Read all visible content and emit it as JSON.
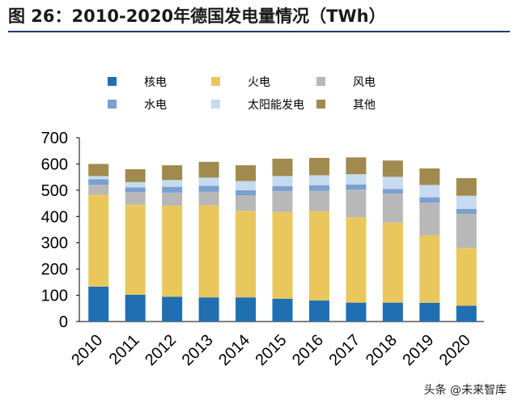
{
  "header": {
    "title": "图 26：2010-2020年德国发电量情况（TWh）"
  },
  "watermark": "头条 @未来智库",
  "chart_data": {
    "type": "bar",
    "stacked": true,
    "title": "图 26：2010-2020年德国发电量情况（TWh）",
    "categories": [
      "2010",
      "2011",
      "2012",
      "2013",
      "2014",
      "2015",
      "2016",
      "2017",
      "2018",
      "2019",
      "2020"
    ],
    "ylim": [
      0,
      700
    ],
    "yticks": [
      0,
      100,
      200,
      300,
      400,
      500,
      600,
      700
    ],
    "grid": false,
    "legend_position": "top",
    "series": [
      {
        "name": "核电",
        "color": "#1f6fb2",
        "values": [
          133,
          102,
          94,
          92,
          92,
          87,
          80,
          72,
          72,
          71,
          60
        ]
      },
      {
        "name": "火电",
        "color": "#e9c75c",
        "values": [
          350,
          343,
          347,
          350,
          330,
          330,
          340,
          325,
          305,
          257,
          220
        ]
      },
      {
        "name": "风电",
        "color": "#b8b8b8",
        "values": [
          38,
          48,
          50,
          52,
          58,
          80,
          78,
          105,
          110,
          125,
          130
        ]
      },
      {
        "name": "水电",
        "color": "#7a9fd1",
        "values": [
          21,
          18,
          22,
          23,
          20,
          19,
          21,
          20,
          18,
          20,
          19
        ]
      },
      {
        "name": "太阳能发电",
        "color": "#c6dbef",
        "values": [
          12,
          20,
          26,
          31,
          35,
          38,
          38,
          39,
          46,
          47,
          50
        ]
      },
      {
        "name": "其他",
        "color": "#a08a4d",
        "values": [
          46,
          49,
          56,
          60,
          60,
          66,
          66,
          64,
          62,
          63,
          67
        ]
      }
    ]
  }
}
